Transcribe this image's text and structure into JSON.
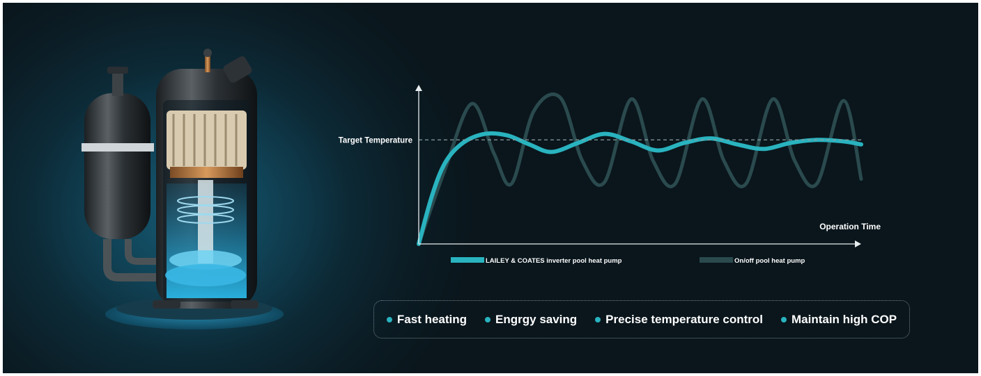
{
  "colors": {
    "background": "#0d2530",
    "inverter_series": "#29b3bf",
    "onoff_series": "#2a4a4e",
    "target_line": "#8a9ea2",
    "axis": "#e8eef0",
    "text": "#ffffff"
  },
  "illustration": {
    "name": "rotary-compressor-cutaway"
  },
  "chart_data": {
    "type": "line",
    "title": "",
    "xlabel": "Operation Time",
    "ylabel": "",
    "target_label": "Target Temperature",
    "xlim": [
      0,
      100
    ],
    "ylim": [
      0,
      100
    ],
    "target_value": 69,
    "grid": false,
    "legend_position": "bottom",
    "series": [
      {
        "name": "LAILEY & COATES inverter pool heat pump",
        "x": [
          0,
          3,
          6,
          10,
          15,
          20,
          25,
          30,
          36,
          42,
          48,
          54,
          60,
          66,
          72,
          78,
          84,
          90,
          96,
          100
        ],
        "y": [
          0,
          32,
          54,
          67,
          73,
          72,
          66,
          61,
          67,
          73,
          68,
          62,
          67,
          70,
          66,
          63,
          67,
          69,
          68,
          66
        ]
      },
      {
        "name": "On/off pool heat pump",
        "x": [
          0,
          6,
          12,
          17,
          21,
          26,
          32,
          37,
          42,
          48,
          53,
          58,
          64,
          69,
          74,
          80,
          85,
          90,
          96,
          100
        ],
        "y": [
          0,
          50,
          93,
          60,
          40,
          88,
          97,
          55,
          41,
          96,
          55,
          40,
          96,
          55,
          40,
          96,
          55,
          40,
          95,
          43
        ]
      }
    ]
  },
  "features": [
    "Fast heating",
    "Engrgy saving",
    "Precise temperature control",
    "Maintain high COP"
  ]
}
